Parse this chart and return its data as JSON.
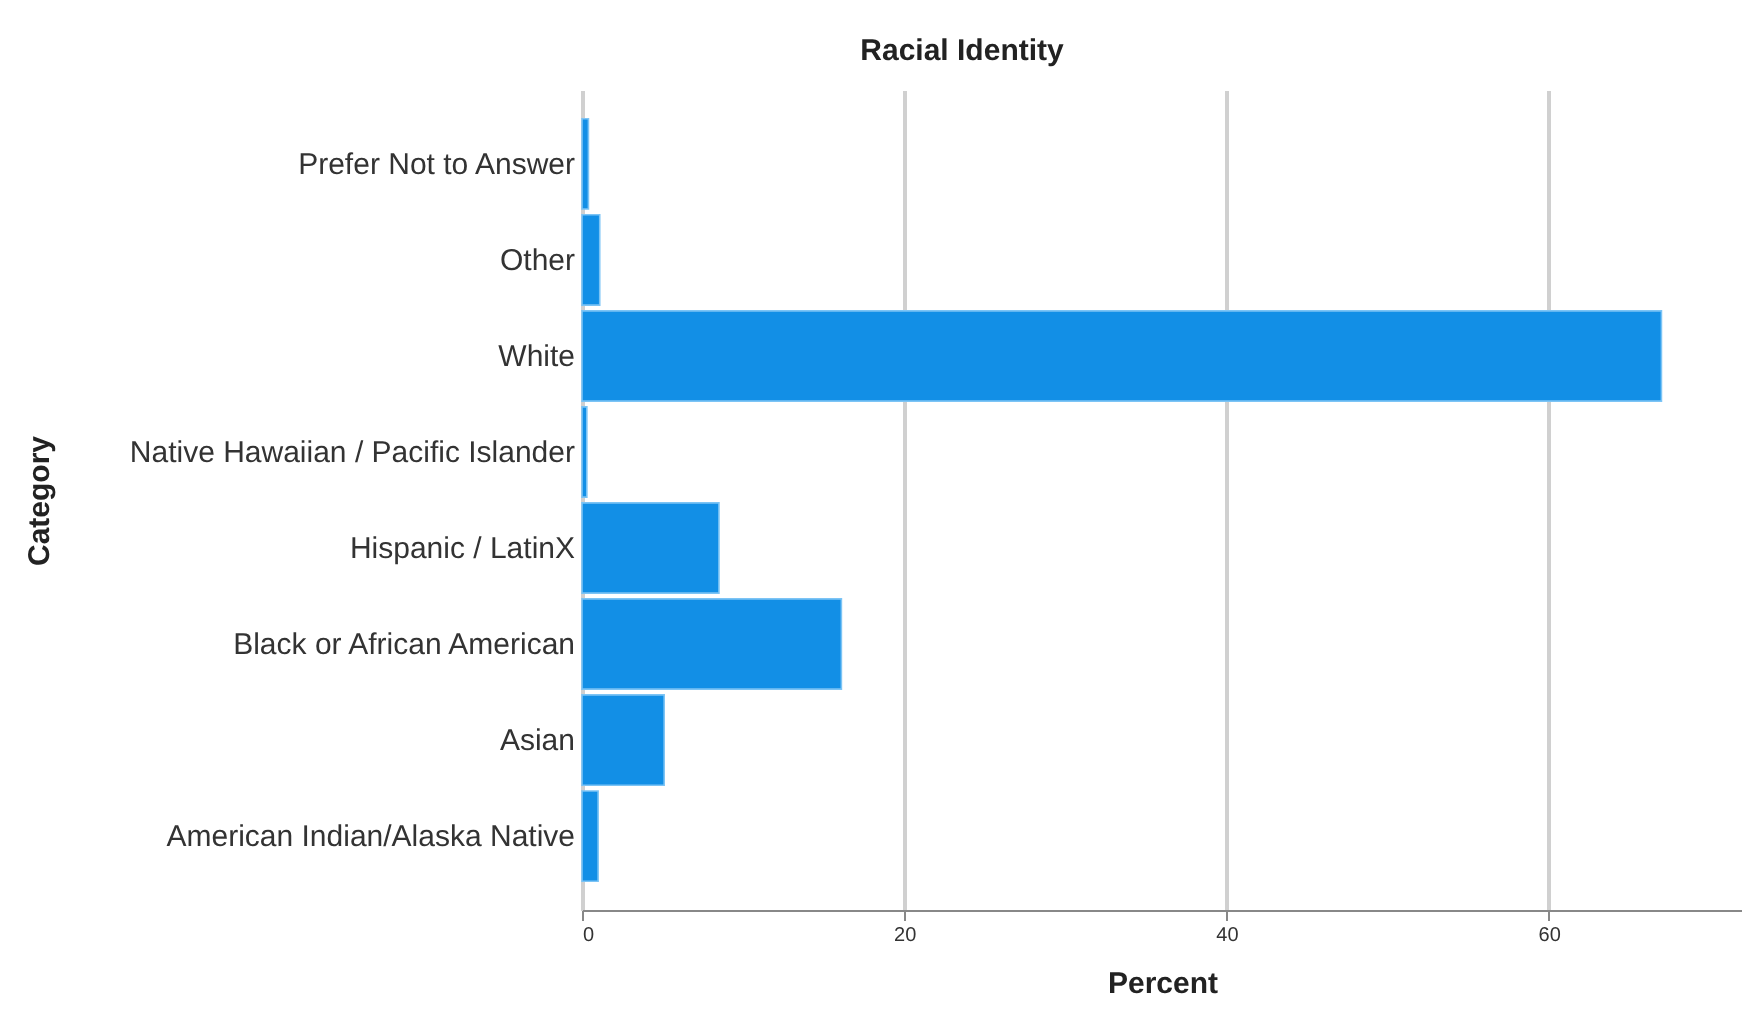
{
  "chart_data": {
    "type": "bar",
    "orientation": "horizontal",
    "title": "Racial Identity",
    "xlabel": "Percent",
    "ylabel": "Category",
    "categories": [
      "Prefer Not to Answer",
      "Other",
      "White",
      "Native Hawaiian / Pacific Islander",
      "Hispanic / LatinX",
      "Black or African American",
      "Asian",
      "American Indian/Alaska Native"
    ],
    "values": [
      0.4,
      1.1,
      67.0,
      0.3,
      8.5,
      16.1,
      5.1,
      1.0
    ],
    "color": "#128fe6",
    "xlim": [
      0,
      72
    ],
    "xticks": [
      0,
      20,
      40,
      60
    ],
    "grid": "x"
  }
}
